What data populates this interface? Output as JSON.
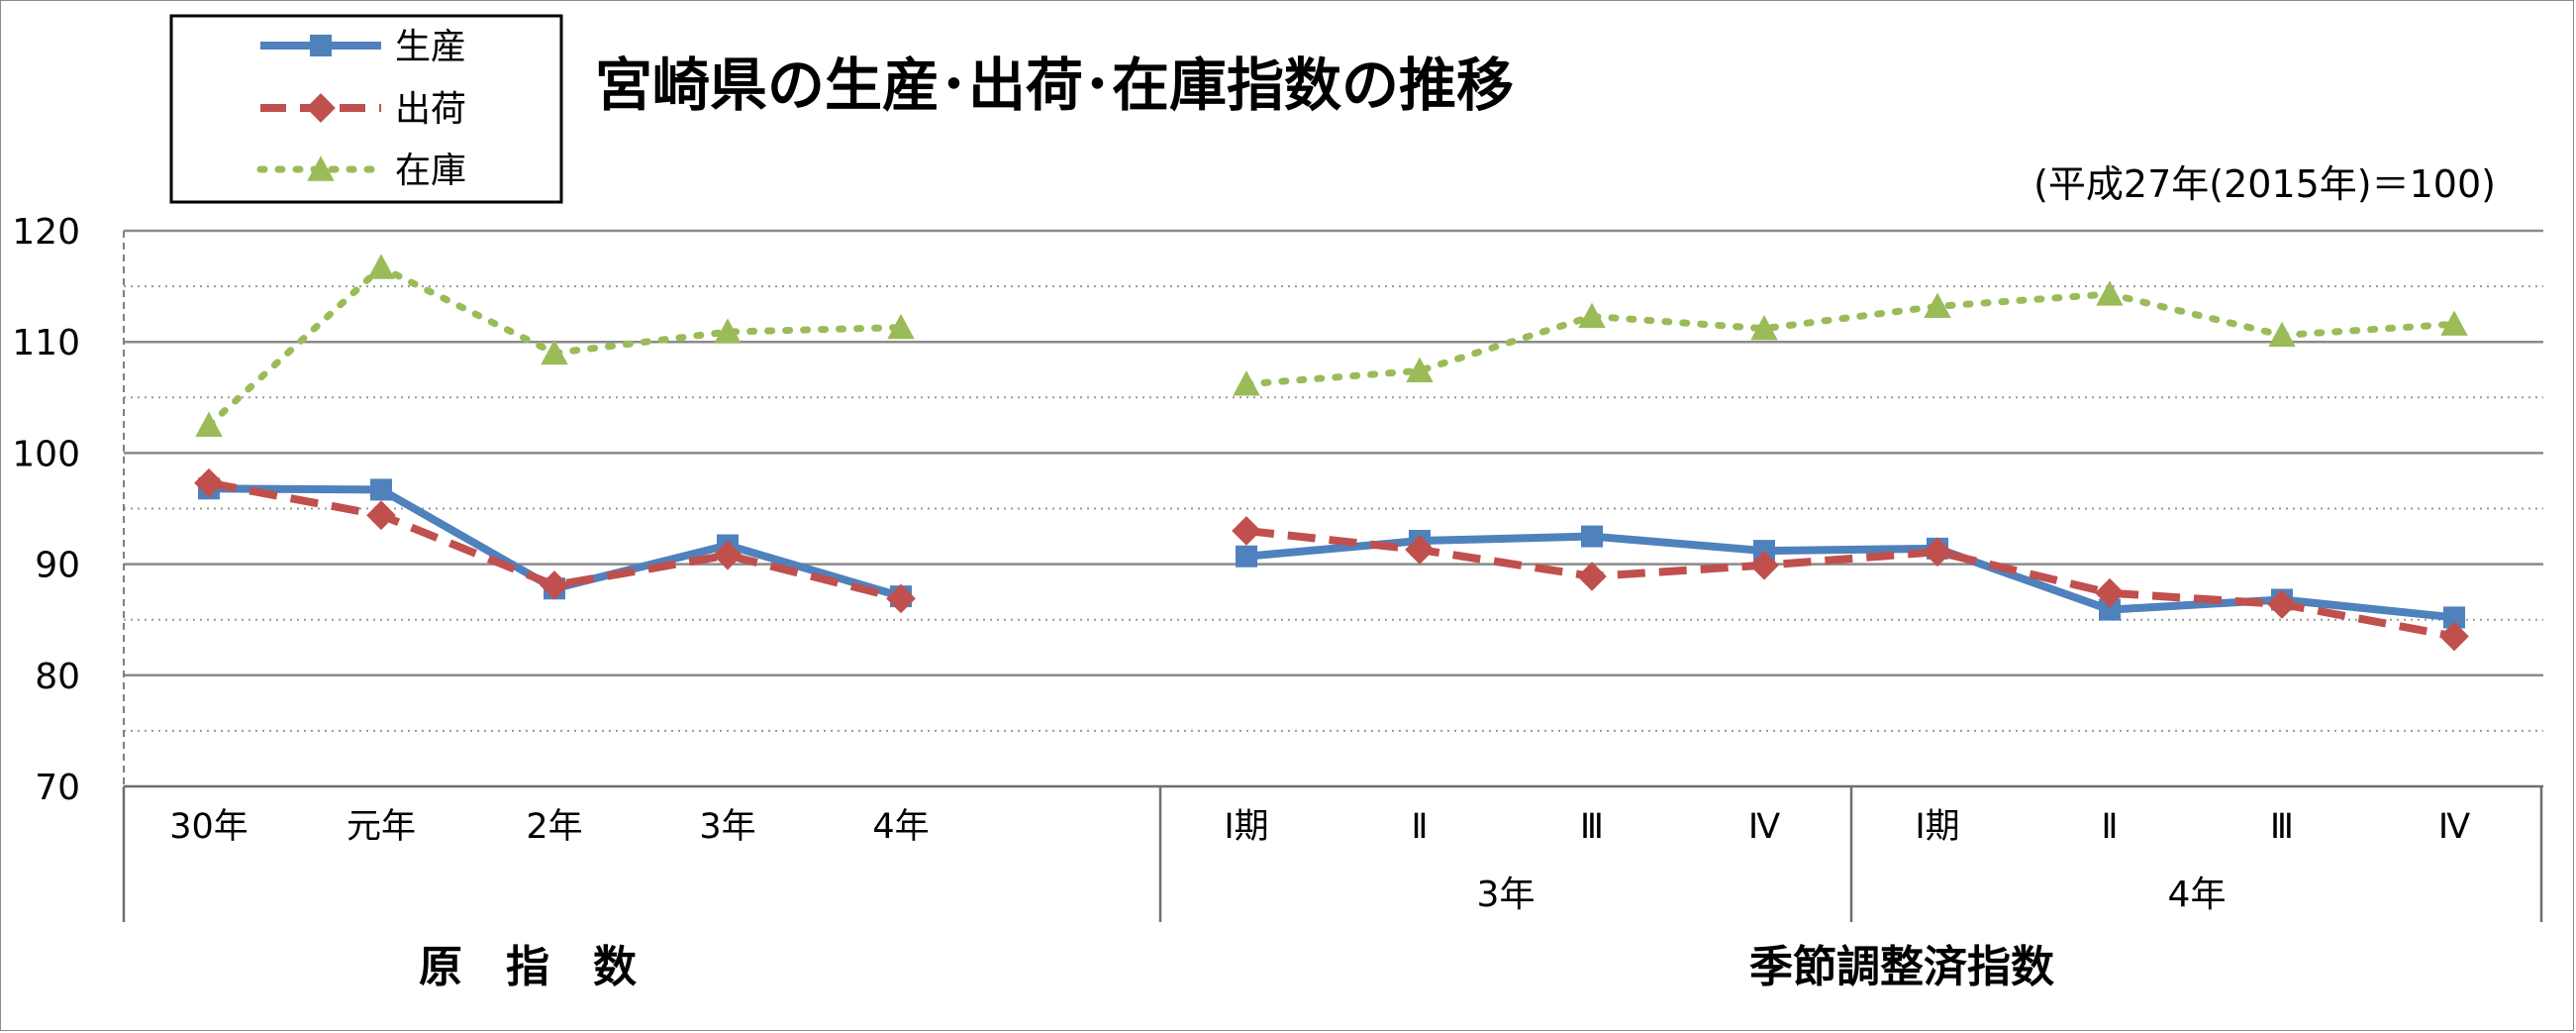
{
  "chart_data": {
    "type": "line",
    "title": "宮崎県の生産･出荷･在庫指数の推移",
    "note": "(平成27年(2015年)＝100)",
    "ylim": [
      70,
      120
    ],
    "yticks": [
      "120",
      "110",
      "100",
      "90",
      "80",
      "70"
    ],
    "categories": [
      "30年",
      "元年",
      "2年",
      "3年",
      "4年",
      "Ⅰ期",
      "Ⅱ",
      "Ⅲ",
      "Ⅳ",
      "Ⅰ期",
      "Ⅱ",
      "Ⅲ",
      "Ⅳ"
    ],
    "groups": [
      {
        "label": "3年"
      },
      {
        "label": "4年"
      }
    ],
    "sections": [
      {
        "label": "原　指　数"
      },
      {
        "label": "季節調整済指数"
      }
    ],
    "series": [
      {
        "name": "生産",
        "color": "#4F81BD",
        "marker": "square",
        "line": "solid",
        "values": [
          [
            96.8,
            96.7,
            87.8,
            91.7,
            87.1
          ],
          [
            90.7,
            92.1,
            92.5,
            91.2,
            91.4,
            85.9,
            86.8,
            85.2
          ]
        ]
      },
      {
        "name": "出荷",
        "color": "#C0504D",
        "marker": "diamond",
        "line": "dashed",
        "values": [
          [
            97.3,
            94.4,
            88.1,
            90.8,
            86.9
          ],
          [
            93.0,
            91.3,
            88.9,
            89.9,
            91.1,
            87.4,
            86.4,
            83.5
          ]
        ]
      },
      {
        "name": "在庫",
        "color": "#9BBB59",
        "marker": "triangle",
        "line": "dotted",
        "values": [
          [
            102.5,
            116.7,
            109.0,
            110.9,
            111.3
          ],
          [
            106.2,
            107.4,
            112.3,
            111.2,
            113.2,
            114.3,
            110.6,
            111.6
          ]
        ]
      }
    ],
    "grid": true,
    "legend_position": "top-left"
  }
}
